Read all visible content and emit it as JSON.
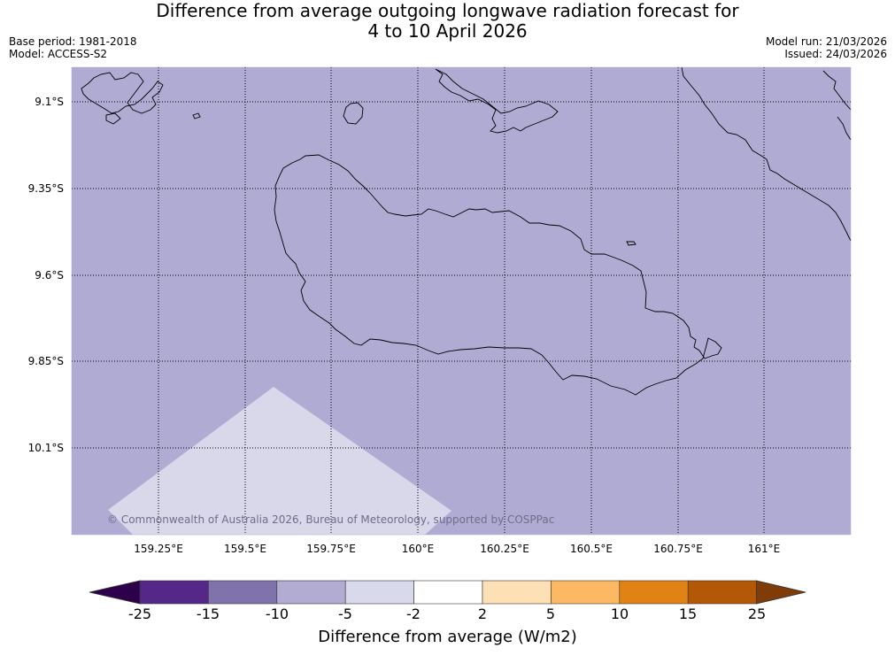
{
  "title": {
    "line1": "Difference from average outgoing longwave radiation forecast for",
    "line2": "4 to 10 April 2026"
  },
  "meta": {
    "base_period": "Base period: 1981-2018",
    "model": "Model: ACCESS-S2",
    "model_run": "Model run: 21/03/2026",
    "issued": "Issued: 24/03/2026"
  },
  "map": {
    "lat_labels": [
      "9.1°S",
      "9.35°S",
      "9.6°S",
      "9.85°S",
      "10.1°S"
    ],
    "lon_labels": [
      "159.25°E",
      "159.5°E",
      "159.75°E",
      "160°E",
      "160.25°E",
      "160.5°E",
      "160.75°E",
      "161°E"
    ],
    "copyright": "© Commonwealth of Australia 2026, Bureau of Meteorology, supported by COSPPac",
    "fill_color": "#b0abd3",
    "light_fill_color": "#d8d8ea"
  },
  "colorbar": {
    "title": "Difference from average (W/m2)",
    "tick_labels": [
      "-25",
      "-15",
      "-10",
      "-5",
      "-2",
      "2",
      "5",
      "10",
      "15",
      "25"
    ],
    "colors": [
      "#2d004b",
      "#542788",
      "#8073ac",
      "#b2abd2",
      "#d8daeb",
      "#ffffff",
      "#fee0b6",
      "#fdb863",
      "#e08214",
      "#b35806",
      "#7f3b08"
    ]
  }
}
